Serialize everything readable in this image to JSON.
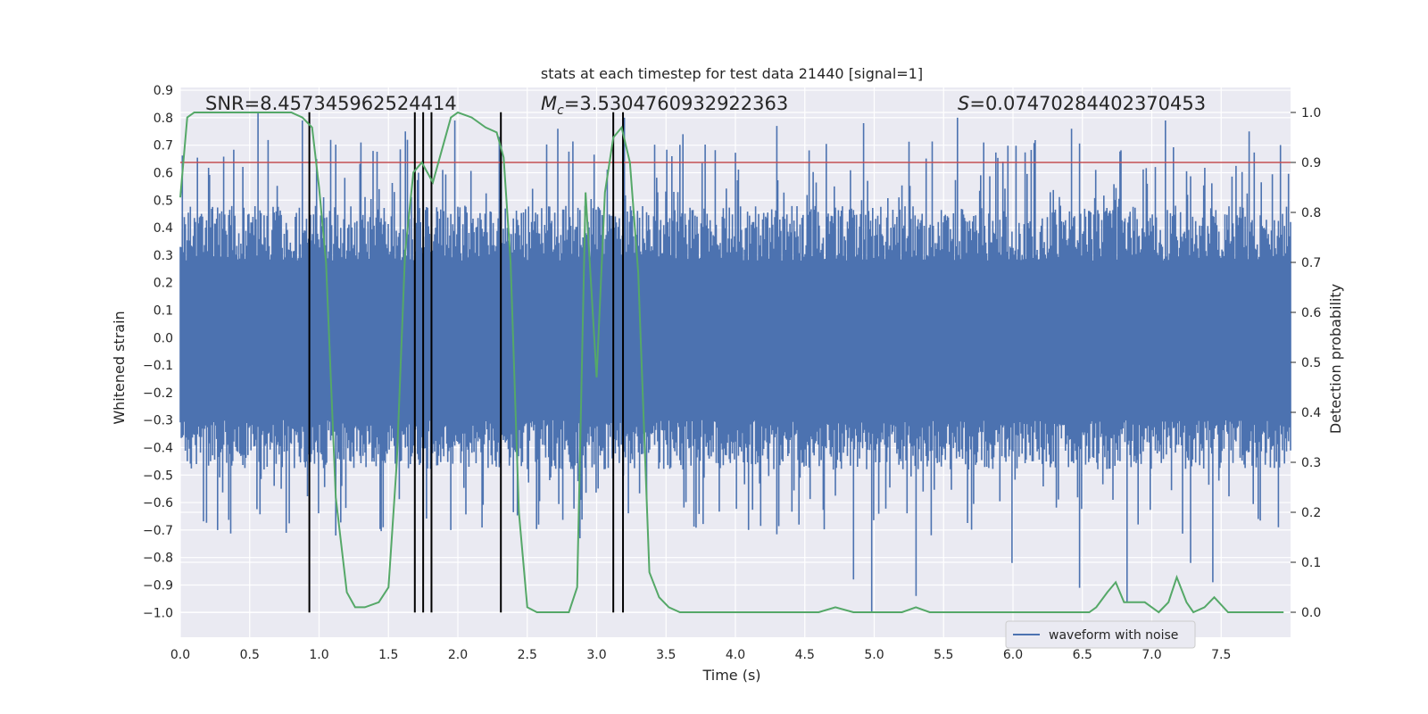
{
  "chart_data": {
    "type": "line",
    "title": "stats at each timestep for test data 21440 [signal=1]",
    "xlabel": "Time (s)",
    "ylabel_left": "Whitened strain",
    "ylabel_right": "Detection probability",
    "xlim": [
      0,
      8.0
    ],
    "ylim_left": [
      -1.09,
      0.91
    ],
    "ylim_right": [
      -0.05,
      1.05
    ],
    "x_ticks": [
      "0.0",
      "0.5",
      "1.0",
      "1.5",
      "2.0",
      "2.5",
      "3.0",
      "3.5",
      "4.0",
      "4.5",
      "5.0",
      "5.5",
      "6.0",
      "6.5",
      "7.0",
      "7.5"
    ],
    "y_ticks_left": [
      "0.9",
      "0.8",
      "0.7",
      "0.6",
      "0.5",
      "0.4",
      "0.3",
      "0.2",
      "0.1",
      "0.0",
      "-0.1",
      "-0.2",
      "-0.3",
      "-0.4",
      "-0.5",
      "-0.6",
      "-0.7",
      "-0.8",
      "-0.9",
      "-1.0"
    ],
    "y_ticks_right": [
      "1.0",
      "0.9",
      "0.8",
      "0.7",
      "0.6",
      "0.5",
      "0.4",
      "0.3",
      "0.2",
      "0.1",
      "0.0"
    ],
    "grid": true,
    "legend_position": "lower-right",
    "annotations": {
      "snr": "SNR=8.457345962524414",
      "mc_symbol": "M",
      "mc_sub": "c",
      "mc_value": "=3.5304760932922363",
      "s_symbol": "S",
      "s_value": "=0.07470284402370453"
    },
    "threshold": {
      "value": 0.9,
      "axis": "right",
      "color": "#c44e52"
    },
    "vertical_lines_x": [
      0.93,
      1.69,
      1.75,
      1.81,
      2.31,
      3.12,
      3.19
    ],
    "vertical_lines_range_left": [
      -1.0,
      0.82
    ],
    "series": [
      {
        "name": "waveform with noise",
        "color": "#4c72b0",
        "axis": "left",
        "envelope_note_values": "whitened noisy strain, dense band roughly -0.45 to 0.45 with spikes up to 0.8 and down to -1.0",
        "spikes": [
          {
            "x": 0.56,
            "y": 0.82
          },
          {
            "x": 0.88,
            "y": 0.79
          },
          {
            "x": 1.3,
            "y": 0.71
          },
          {
            "x": 1.62,
            "y": 0.75
          },
          {
            "x": 1.98,
            "y": 0.79
          },
          {
            "x": 2.3,
            "y": 0.73
          },
          {
            "x": 2.72,
            "y": 0.76
          },
          {
            "x": 3.2,
            "y": 0.8
          },
          {
            "x": 3.62,
            "y": 0.74
          },
          {
            "x": 4.3,
            "y": 0.77
          },
          {
            "x": 4.92,
            "y": 0.78
          },
          {
            "x": 5.6,
            "y": 0.8
          },
          {
            "x": 6.42,
            "y": 0.76
          },
          {
            "x": 7.1,
            "y": 0.79
          },
          {
            "x": 7.7,
            "y": 0.75
          },
          {
            "x": 0.27,
            "y": -0.7
          },
          {
            "x": 0.76,
            "y": -0.71
          },
          {
            "x": 1.12,
            "y": -0.72
          },
          {
            "x": 1.46,
            "y": -0.69
          },
          {
            "x": 1.95,
            "y": -0.7
          },
          {
            "x": 2.58,
            "y": -0.68
          },
          {
            "x": 2.88,
            "y": -0.73
          },
          {
            "x": 4.85,
            "y": -0.88
          },
          {
            "x": 4.98,
            "y": -1.0
          },
          {
            "x": 5.3,
            "y": -0.94
          },
          {
            "x": 5.99,
            "y": -0.82
          },
          {
            "x": 6.48,
            "y": -0.91
          },
          {
            "x": 6.82,
            "y": -0.96
          },
          {
            "x": 7.28,
            "y": -0.82
          },
          {
            "x": 7.44,
            "y": -0.89
          }
        ]
      },
      {
        "name": "detection probability",
        "color": "#55a868",
        "axis": "right",
        "x": [
          0.0,
          0.05,
          0.1,
          0.2,
          0.3,
          0.4,
          0.5,
          0.6,
          0.7,
          0.8,
          0.88,
          0.95,
          1.0,
          1.05,
          1.12,
          1.2,
          1.26,
          1.33,
          1.43,
          1.5,
          1.56,
          1.62,
          1.68,
          1.74,
          1.78,
          1.82,
          1.88,
          1.95,
          2.0,
          2.1,
          2.2,
          2.28,
          2.33,
          2.38,
          2.44,
          2.5,
          2.57,
          2.7,
          2.8,
          2.86,
          2.92,
          3.0,
          3.06,
          3.12,
          3.18,
          3.24,
          3.3,
          3.38,
          3.45,
          3.52,
          3.6,
          3.8,
          4.0,
          4.2,
          4.4,
          4.6,
          4.72,
          4.85,
          5.0,
          5.2,
          5.3,
          5.4,
          5.5,
          5.6,
          5.8,
          6.0,
          6.2,
          6.4,
          6.55,
          6.6,
          6.68,
          6.74,
          6.8,
          6.88,
          6.95,
          7.05,
          7.12,
          7.18,
          7.25,
          7.3,
          7.38,
          7.45,
          7.55,
          7.7,
          7.95
        ],
        "y": [
          0.83,
          0.99,
          1.0,
          1.0,
          1.0,
          1.0,
          1.0,
          1.0,
          1.0,
          1.0,
          0.99,
          0.97,
          0.85,
          0.7,
          0.23,
          0.04,
          0.01,
          0.01,
          0.02,
          0.05,
          0.3,
          0.72,
          0.88,
          0.9,
          0.88,
          0.86,
          0.92,
          0.99,
          1.0,
          0.99,
          0.97,
          0.96,
          0.91,
          0.7,
          0.2,
          0.01,
          0.0,
          0.0,
          0.0,
          0.05,
          0.84,
          0.47,
          0.84,
          0.95,
          0.97,
          0.9,
          0.68,
          0.08,
          0.03,
          0.01,
          0.0,
          0.0,
          0.0,
          0.0,
          0.0,
          0.0,
          0.01,
          0.0,
          0.0,
          0.0,
          0.01,
          0.0,
          0.0,
          0.0,
          0.0,
          0.0,
          0.0,
          0.0,
          0.0,
          0.01,
          0.04,
          0.06,
          0.02,
          0.02,
          0.02,
          0.0,
          0.02,
          0.07,
          0.02,
          0.0,
          0.01,
          0.03,
          0.0,
          0.0,
          0.0
        ]
      }
    ]
  }
}
